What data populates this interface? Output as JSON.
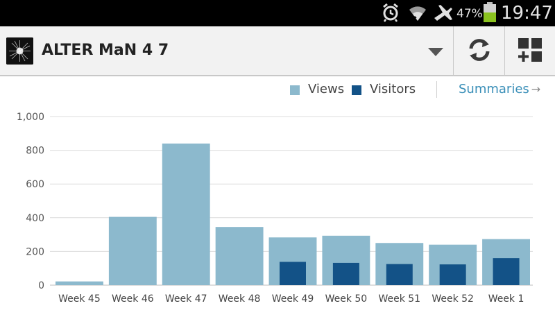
{
  "status_bar": {
    "battery_percent": "47%",
    "time": "19:47",
    "icons": [
      "alarm-icon",
      "wifi-icon",
      "airplane-mode-icon",
      "battery-icon"
    ]
  },
  "action_bar": {
    "site_title": "ALTER MaN 4 7",
    "buttons": [
      "dropdown-arrow-icon",
      "refresh-icon",
      "add-dashboard-icon"
    ]
  },
  "legend": {
    "views_label": "Views",
    "visitors_label": "Visitors",
    "summaries_link": "Summaries",
    "views_color": "#8cb9cd",
    "visitors_color": "#135287"
  },
  "chart_data": {
    "type": "bar",
    "categories": [
      "Week 45",
      "Week 46",
      "Week 47",
      "Week 48",
      "Week 49",
      "Week 50",
      "Week 51",
      "Week 52",
      "Week 1"
    ],
    "series": [
      {
        "name": "Views",
        "values": [
          22,
          405,
          840,
          345,
          283,
          293,
          250,
          240,
          273
        ]
      },
      {
        "name": "Visitors",
        "values": [
          0,
          0,
          0,
          0,
          138,
          132,
          125,
          123,
          160
        ]
      }
    ],
    "ylim": [
      0,
      1000
    ],
    "yticks": [
      "0",
      "200",
      "400",
      "600",
      "800",
      "1,000"
    ],
    "ytick_values": [
      0,
      200,
      400,
      600,
      800,
      1000
    ],
    "grid": true,
    "legend_position": "top-right"
  }
}
